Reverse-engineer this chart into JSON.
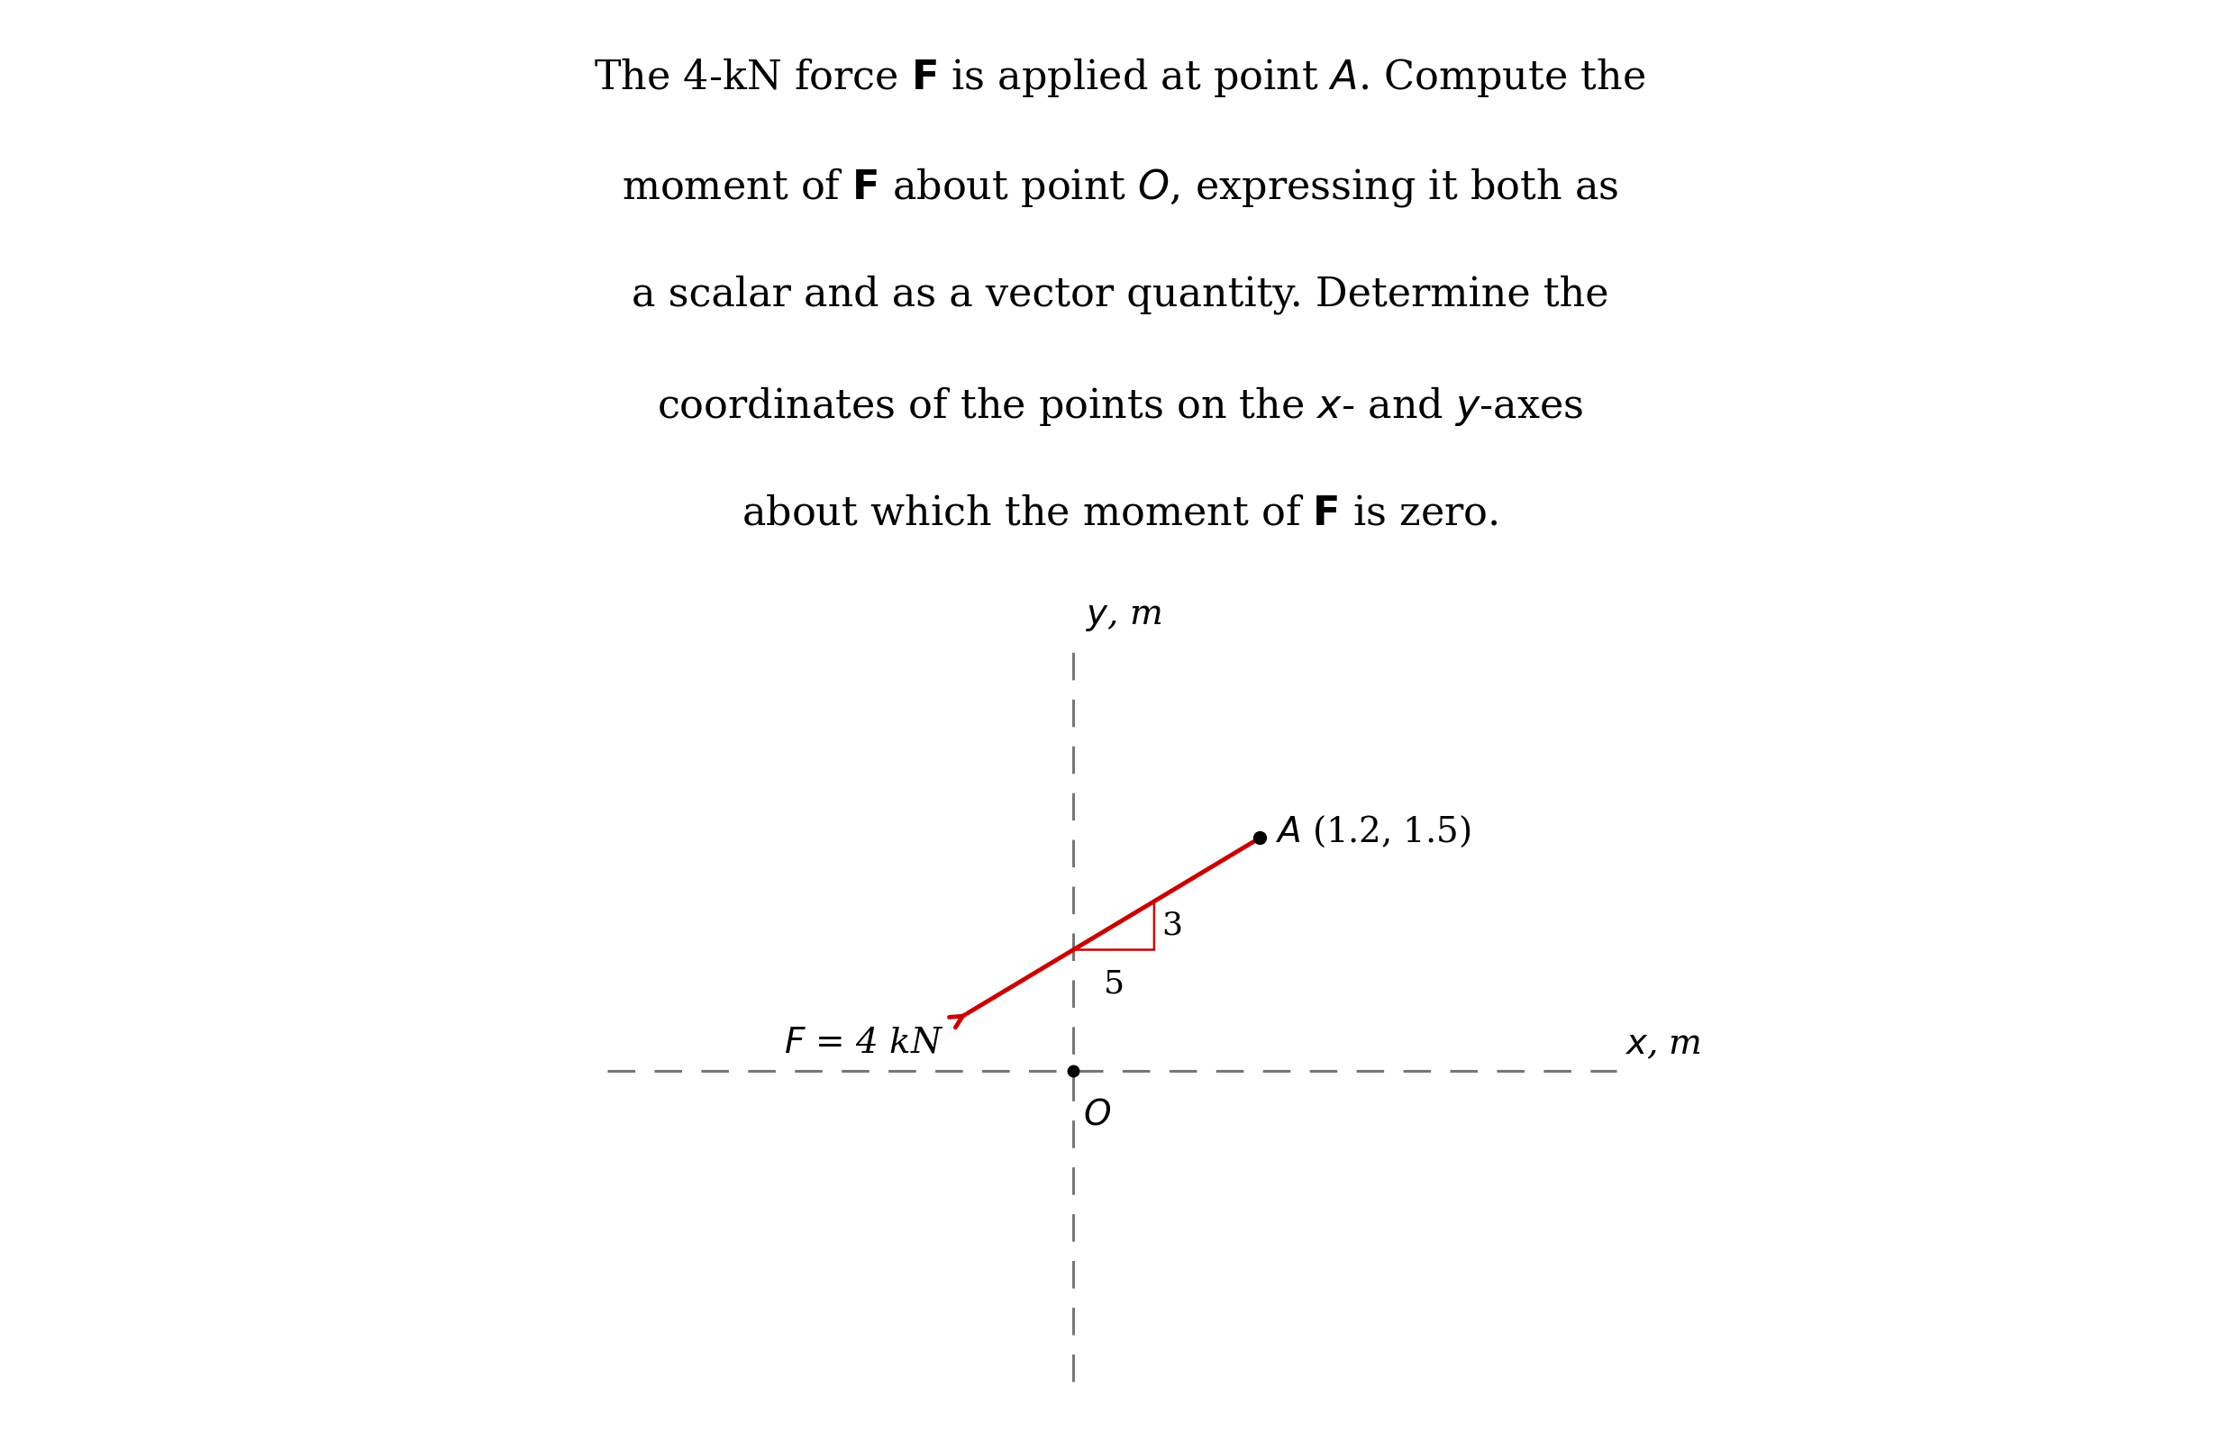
{
  "background_color": "#ffffff",
  "fig_width": 24.86,
  "fig_height": 16.0,
  "point_A": [
    1.2,
    1.5
  ],
  "point_O": [
    0.0,
    0.0
  ],
  "force_label": "$F$ = 4 kN",
  "force_color": "#cc0000",
  "axis_color": "#777777",
  "dashed_color": "#777777",
  "x_label": "$x$, m",
  "y_label": "$y$, m",
  "triangle_label_3": "3",
  "triangle_label_5": "5",
  "point_A_label": "$A$ (1.2, 1.5)",
  "point_O_label": "$O$",
  "text_lines": [
    "The 4-kN force $\\mathbf{F}$ is applied at point $A$. Compute the",
    "moment of $\\mathbf{F}$ about point $O$, expressing it both as",
    "a scalar and as a vector quantity. Determine the",
    "coordinates of the points on the $x$- and $y$-axes",
    "about which the moment of $\\mathbf{F}$ is zero."
  ],
  "text_fontsize": 32,
  "diagram_fontsize": 28
}
